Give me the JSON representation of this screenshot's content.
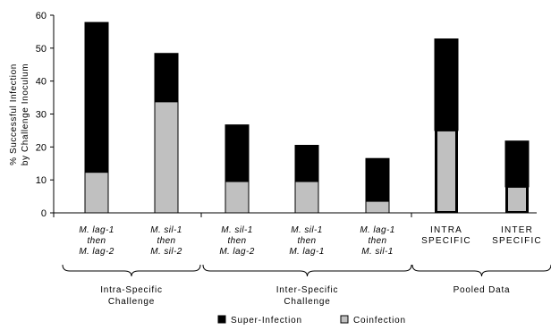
{
  "chart_data": {
    "type": "bar",
    "stacked": true,
    "ylabel_lines": [
      "% Successful Infection",
      "by Challenge Inoculum"
    ],
    "ylim": [
      0,
      60
    ],
    "yticks": [
      0,
      10,
      20,
      30,
      40,
      50,
      60
    ],
    "categories": [
      {
        "lines": [
          "M. lag-1",
          "then",
          "M. lag-2"
        ],
        "italic": true
      },
      {
        "lines": [
          "M. sil-1",
          "then",
          "M. sil-2"
        ],
        "italic": true
      },
      {
        "lines": [
          "M. sil-1",
          "then",
          "M. lag-2"
        ],
        "italic": true
      },
      {
        "lines": [
          "M. sil-1",
          "then",
          "M. lag-1"
        ],
        "italic": true
      },
      {
        "lines": [
          "M. lag-1",
          "then",
          "M. sil-1"
        ],
        "italic": true
      },
      {
        "lines": [
          "INTRA",
          "SPECIFIC"
        ],
        "italic": false
      },
      {
        "lines": [
          "INTER",
          "SPECIFIC"
        ],
        "italic": false
      }
    ],
    "series": [
      {
        "name": "Coinfection",
        "color": "#c0c0c0",
        "values": [
          12.3,
          33.7,
          9.5,
          9.5,
          3.5,
          25.0,
          7.9
        ]
      },
      {
        "name": "Super-Infection",
        "color": "#000000",
        "values": [
          45.5,
          14.7,
          17.2,
          11.0,
          13.0,
          27.8,
          13.9
        ]
      }
    ],
    "groups": [
      {
        "label_lines": [
          "Intra-Specific",
          "Challenge"
        ],
        "categories": [
          0,
          1
        ]
      },
      {
        "label_lines": [
          "Inter-Specific",
          "Challenge"
        ],
        "categories": [
          2,
          3,
          4
        ]
      },
      {
        "label_lines": [
          "Pooled Data"
        ],
        "categories": [
          5,
          6
        ]
      }
    ],
    "legend": {
      "placement": "bottom",
      "order": [
        "Super-Infection",
        "Coinfection"
      ]
    },
    "grid": false
  }
}
